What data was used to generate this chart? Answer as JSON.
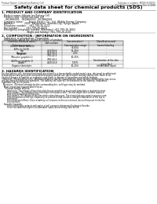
{
  "bg_color": "#ffffff",
  "header_left": "Product Name: Lithium Ion Battery Cell",
  "header_right_1": "Substance number: MSDS-B-00015",
  "header_right_2": "Establishment / Revision: Dec.1.2010",
  "main_title": "Safety data sheet for chemical products (SDS)",
  "section1_title": "1. PRODUCT AND COMPANY IDENTIFICATION",
  "section1_lines": [
    "· Product name: Lithium Ion Battery Cell",
    "· Product code: Cylindrical-type cell",
    "    061866001,  061866002,  061866004",
    "· Company name:       Sanyo Electric Co., Ltd., Mobile Energy Company",
    "· Address:             2001  Kaminaizen, Sumoto-City, Hyogo, Japan",
    "· Telephone number:   +81-799-26-4111",
    "· Fax number:         +81-799-26-4120",
    "· Emergency telephone number (Weekday) +81-799-26-3662",
    "                               (Night and holiday) +81-799-26-4101"
  ],
  "section2_title": "2. COMPOSITION / INFORMATION ON INGREDIENTS",
  "section2_sub1": "· Substance or preparation: Preparation",
  "section2_sub2": "· Information about the chemical nature of product:",
  "table_headers": [
    "Chemical chemical name /\nSubstance name",
    "CAS number",
    "Concentration /\nConcentration range",
    "Classification and\nhazard labeling"
  ],
  "table_rows": [
    [
      "Lithium cobalt tantalite\n(LiMn-Co-Ti-O2)",
      "-",
      "30-60%",
      "-"
    ],
    [
      "Iron",
      "7439-89-6",
      "15-25%",
      "-"
    ],
    [
      "Aluminum",
      "7429-90-5",
      "2-5%",
      "-"
    ],
    [
      "Graphite\n(Mixed in graphite-1)\n(Al-Mn-co graphite-1)",
      "7782-42-5\n7782-44-2",
      "10-25%",
      "-"
    ],
    [
      "Copper",
      "7440-50-8",
      "5-15%",
      "Sensitization of the skin\ngroup No.2"
    ],
    [
      "Organic electrolyte",
      "-",
      "10-20%",
      "Inflammable liquid"
    ]
  ],
  "section3_title": "3. HAZARDS IDENTIFICATION",
  "section3_lines": [
    "For the battery cell, chemical materials are stored in a hermetically sealed metal case, designed to withstand",
    "temperatures and pressures encountered during normal use. As a result, during normal use, there is no",
    "physical danger of ignition or explosion and there is danger of hazardous materials leakage.",
    "  However, if exposed to a fire, added mechanical shocks, decomposed, when electric abnormality may occur,",
    "the gas release control be operated. The battery cell case will be breached at the battery, hazardous",
    "materials may be released.",
    "  Moreover, if heated strongly by the surrounding fire, solid gas may be emitted."
  ],
  "section3_bullet1": "· Most important hazard and effects:",
  "section3_human": "    Human health effects:",
  "section3_human_lines": [
    "        Inhalation: The release of the electrolyte has an anesthesia action and stimulates a respiratory tract.",
    "        Skin contact: The release of the electrolyte stimulates a skin. The electrolyte skin contact causes a",
    "        sore and stimulation on the skin.",
    "        Eye contact: The release of the electrolyte stimulates eyes. The electrolyte eye contact causes a sore",
    "        and stimulation on the eye. Especially, a substance that causes a strong inflammation of the eye is",
    "        contained.",
    "        Environmental effects: Since a battery cell remains in the environment, do not throw out it into the",
    "        environment."
  ],
  "section3_bullet2": "· Specific hazards:",
  "section3_specific_lines": [
    "        If the electrolyte contacts with water, it will generate detrimental hydrogen fluoride.",
    "        Since the said electrolyte is Inflammable liquid, do not bring close to fire."
  ]
}
